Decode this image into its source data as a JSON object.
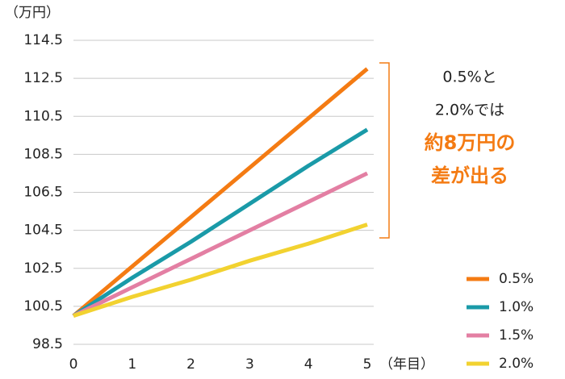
{
  "chart_data": {
    "type": "line",
    "y_unit": "（万円）",
    "x_unit": "（年目）",
    "x": [
      0,
      1,
      2,
      3,
      4,
      5
    ],
    "xlim": [
      0,
      5
    ],
    "xticks": [
      0,
      1,
      2,
      3,
      4,
      5
    ],
    "ylim": [
      98.5,
      114.5
    ],
    "yticks": [
      98.5,
      100.5,
      102.5,
      104.5,
      106.5,
      108.5,
      110.5,
      112.5,
      114.5
    ],
    "grid": true,
    "legend": "lower right",
    "series": [
      {
        "name": "0.5%",
        "color": "#f47b13",
        "values": [
          100,
          102.6,
          105.2,
          107.8,
          110.4,
          113
        ]
      },
      {
        "name": "1.0%",
        "color": "#1a9aa8",
        "values": [
          100,
          102,
          103.9,
          105.9,
          107.9,
          109.8
        ]
      },
      {
        "name": "1.5%",
        "color": "#e37fa3",
        "values": [
          100,
          101.5,
          103,
          104.5,
          106,
          107.5
        ]
      },
      {
        "name": "2.0%",
        "color": "#f2d230",
        "values": [
          100,
          101,
          101.9,
          102.9,
          103.8,
          104.8
        ]
      }
    ],
    "annotations": [
      "0.5%と",
      "2.0%では",
      "約8万円の",
      "差が出る"
    ],
    "annotation_highlight_color": "#f47b13"
  }
}
